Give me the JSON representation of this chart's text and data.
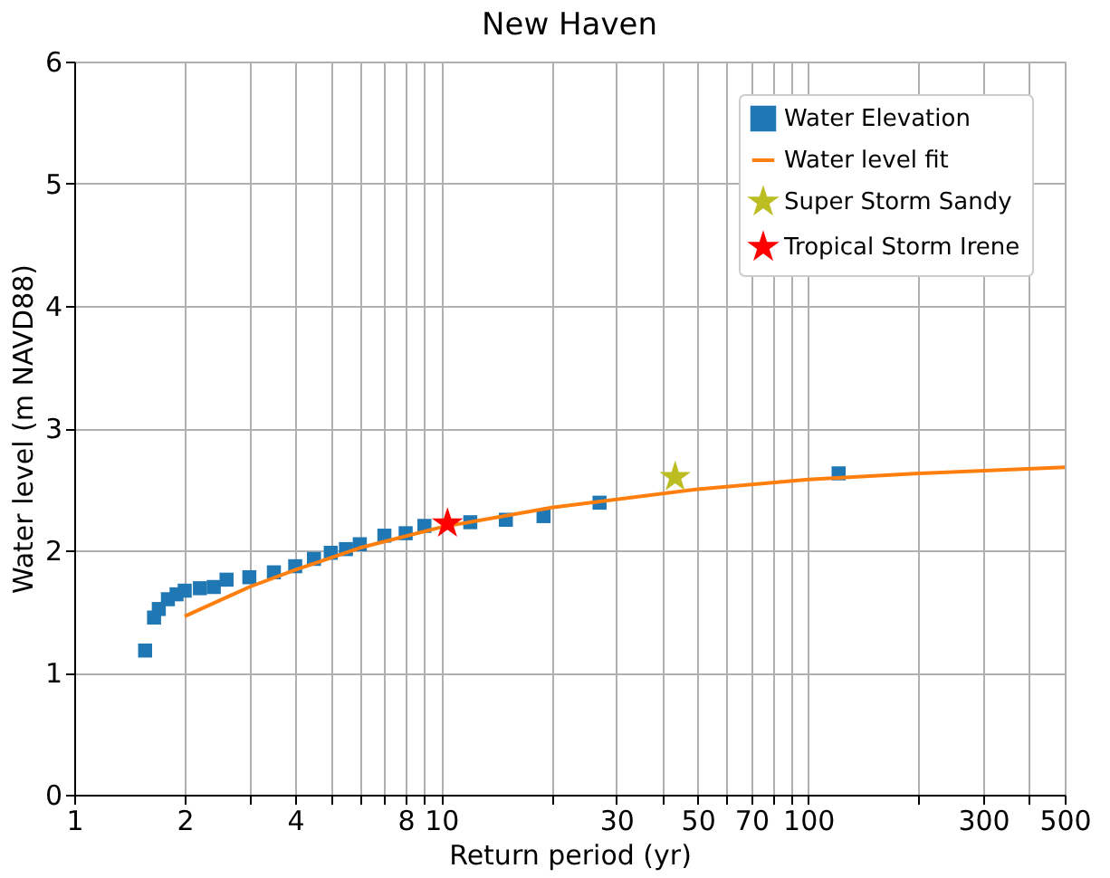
{
  "chart_data": {
    "type": "scatter",
    "title": "New Haven",
    "xlabel": "Return period (yr)",
    "ylabel": "Water level (m NAVD88)",
    "log": "x",
    "grid": true,
    "legend": "top right",
    "xlim": [
      1,
      500
    ],
    "ylim": [
      0,
      6
    ],
    "xticks": [
      1,
      2,
      {
        "value": 3,
        "label": null
      },
      4,
      {
        "value": 5,
        "label": null
      },
      {
        "value": 6,
        "label": null
      },
      {
        "value": 7,
        "label": null
      },
      8,
      {
        "value": 9,
        "label": null
      },
      10,
      {
        "value": 20,
        "label": null
      },
      30,
      {
        "value": 40,
        "label": null
      },
      50,
      {
        "value": 60,
        "label": null
      },
      70,
      {
        "value": 80,
        "label": null
      },
      {
        "value": 90,
        "label": null
      },
      100,
      {
        "value": 200,
        "label": null
      },
      300,
      {
        "value": 400,
        "label": null
      },
      500
    ],
    "yticks": [
      0,
      1,
      2,
      3,
      4,
      5,
      6
    ],
    "series": [
      {
        "name": "Water Elevation",
        "type": "scatter",
        "marker": "square",
        "color": "#1f77b4",
        "x": [
          1.56,
          1.65,
          1.7,
          1.8,
          1.9,
          2.0,
          2.2,
          2.4,
          2.6,
          3.0,
          3.5,
          4,
          4.5,
          5,
          5.5,
          6,
          7,
          8,
          9,
          12,
          15,
          19,
          27,
          121
        ],
        "values": [
          1.18,
          1.45,
          1.52,
          1.6,
          1.64,
          1.67,
          1.69,
          1.7,
          1.76,
          1.78,
          1.82,
          1.87,
          1.93,
          1.98,
          2.01,
          2.05,
          2.12,
          2.14,
          2.2,
          2.23,
          2.25,
          2.28,
          2.39,
          2.63
        ]
      },
      {
        "name": "Water level fit",
        "type": "line",
        "marker": "none",
        "line_style": "solid",
        "color": "#ff7f0e",
        "x": [
          2,
          3,
          4,
          6,
          10,
          20,
          50,
          100,
          200,
          500
        ],
        "values": [
          1.46,
          1.7,
          1.84,
          2.02,
          2.19,
          2.35,
          2.5,
          2.58,
          2.63,
          2.68
        ]
      },
      {
        "name": "Super Storm Sandy",
        "type": "scatter",
        "marker": "star",
        "color": "#bcbd22",
        "x": [
          43.4
        ],
        "values": [
          2.6
        ]
      },
      {
        "name": "Tropical Storm Irene",
        "type": "scatter",
        "marker": "star",
        "color": "#ff0000",
        "x": [
          10.4
        ],
        "values": [
          2.22
        ]
      }
    ]
  }
}
